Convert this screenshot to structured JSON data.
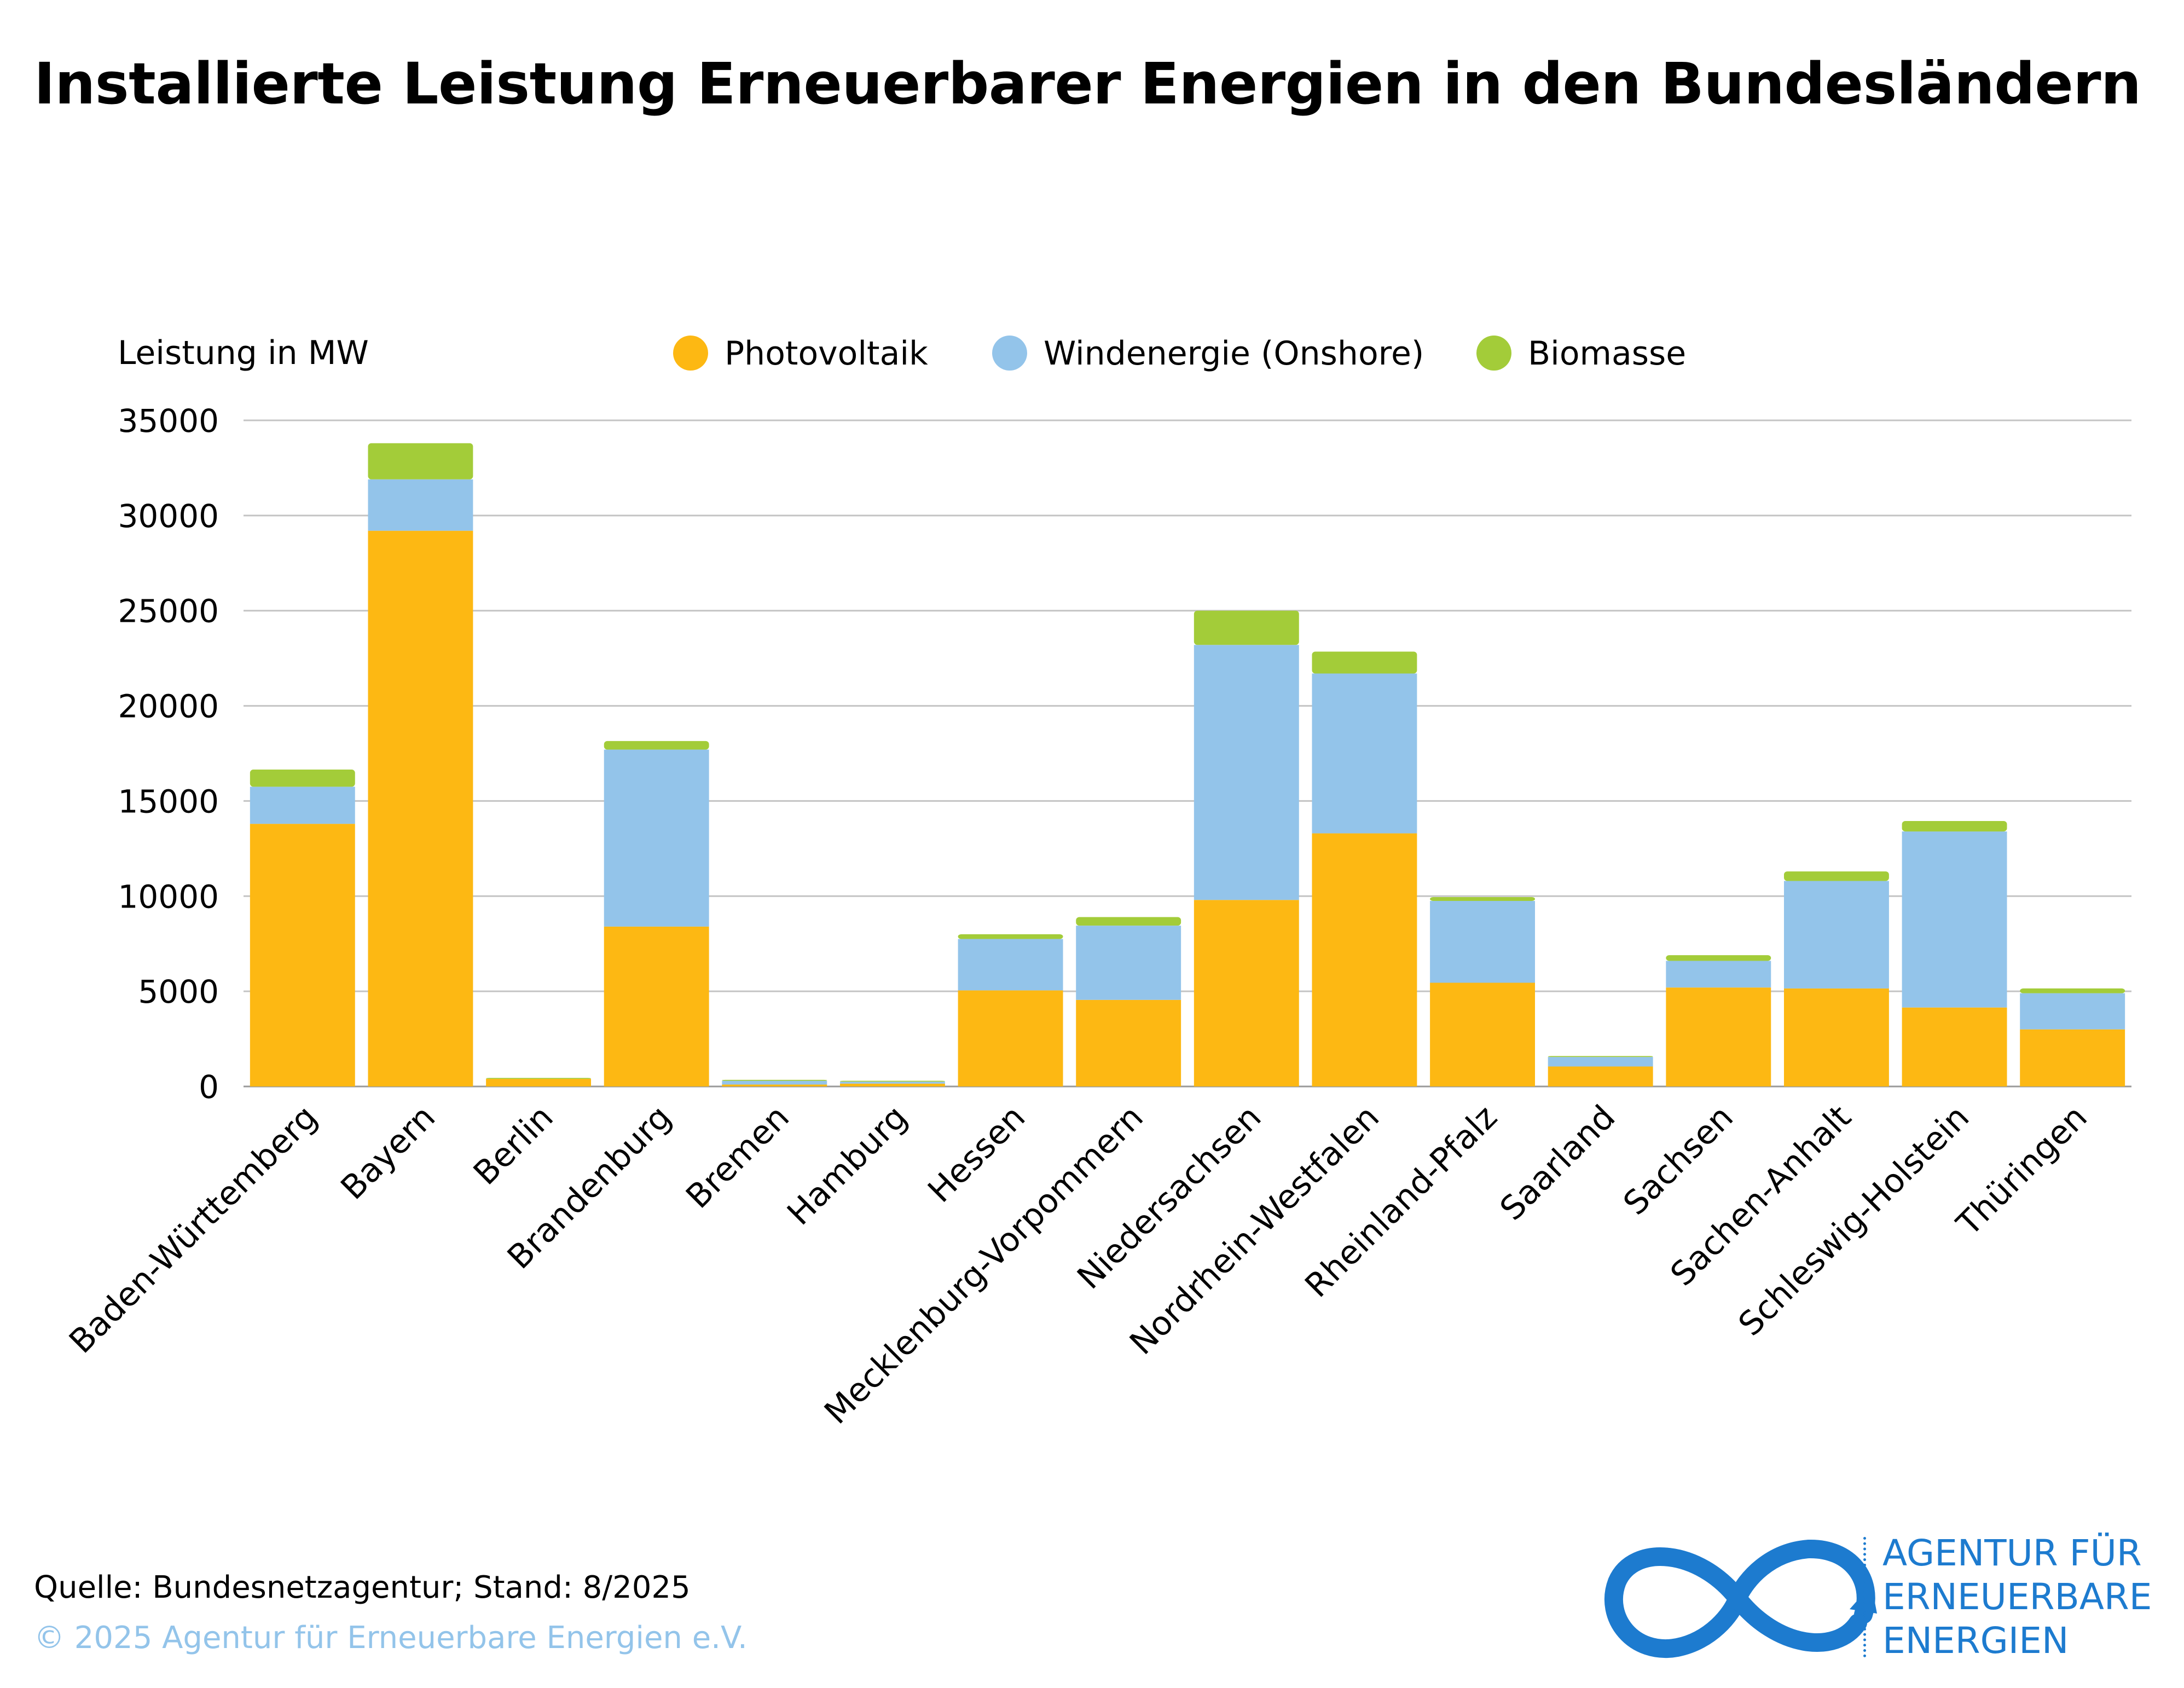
{
  "title": "Installierte Leistung Erneuerbarer Energien in den Bundesländern",
  "source": "Quelle: Bundesnetzagentur; Stand: 8/2025",
  "copyright": "© 2025 Agentur für Erneuerbare Energien e.V.",
  "logo": {
    "line1": "AGENTUR FÜR",
    "line2": "ERNEUERBARE",
    "line3": "ENERGIEN"
  },
  "colors": {
    "photovoltaik": "#fdb813",
    "wind": "#93c4ea",
    "biomasse": "#a3cc39",
    "brand": "#1d7bcf",
    "grid": "#c4c4c4"
  },
  "chart_data": {
    "type": "bar",
    "stacked": true,
    "ylabel": "Leistung in MW",
    "ylim": [
      0,
      35000
    ],
    "yticks": [
      0,
      5000,
      10000,
      15000,
      20000,
      25000,
      30000,
      35000
    ],
    "grid": true,
    "legend_position": "top",
    "categories": [
      "Baden-Württemberg",
      "Bayern",
      "Berlin",
      "Brandenburg",
      "Bremen",
      "Hamburg",
      "Hessen",
      "Mecklenburg-Vorpommern",
      "Niedersachsen",
      "Nordrhein-Westfalen",
      "Rheinland-Pfalz",
      "Saarland",
      "Sachsen",
      "Sachen-Anhalt",
      "Schleswig-Holstein",
      "Thüringen"
    ],
    "series": [
      {
        "name": "Photovoltaik",
        "color": "#fdb813",
        "values": [
          13800,
          29200,
          400,
          8400,
          100,
          150,
          5050,
          4550,
          9800,
          13300,
          5450,
          1050,
          5200,
          5150,
          4150,
          3000
        ]
      },
      {
        "name": "Windenergie (Onshore)",
        "color": "#93c4ea",
        "values": [
          1950,
          2700,
          0,
          9300,
          200,
          100,
          2700,
          3900,
          13400,
          8400,
          4300,
          500,
          1400,
          5650,
          9250,
          1900
        ]
      },
      {
        "name": "Biomasse",
        "color": "#a3cc39",
        "values": [
          900,
          1900,
          50,
          450,
          50,
          50,
          250,
          450,
          1800,
          1150,
          200,
          50,
          300,
          500,
          550,
          250
        ]
      }
    ]
  }
}
